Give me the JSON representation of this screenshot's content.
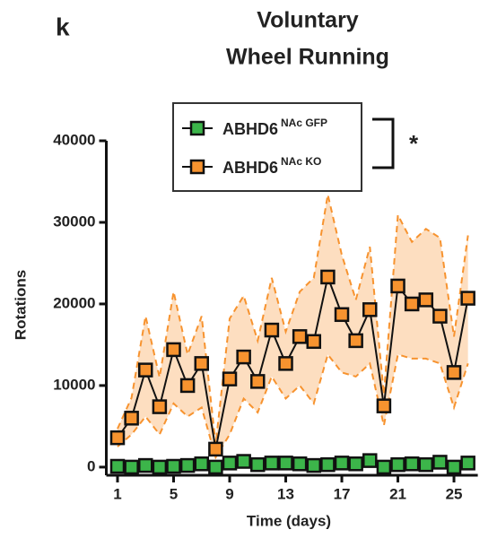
{
  "chart_data": {
    "type": "line",
    "panel_label": "k",
    "title": [
      "Voluntary",
      "Wheel Running"
    ],
    "x_label": "Time (days)",
    "y_label": "Rotations",
    "significance": "*",
    "x": [
      1,
      2,
      3,
      4,
      5,
      6,
      7,
      8,
      9,
      10,
      11,
      12,
      13,
      14,
      15,
      16,
      17,
      18,
      19,
      20,
      21,
      22,
      23,
      24,
      25,
      26
    ],
    "xlim": [
      0.2,
      26.7
    ],
    "xticks": [
      1,
      5,
      9,
      13,
      17,
      21,
      25
    ],
    "ylim": [
      -1000,
      40000
    ],
    "yticks": [
      0,
      10000,
      20000,
      30000,
      40000
    ],
    "series": [
      {
        "name": "ABHD6",
        "superscript": "NAc GFP",
        "color": "#3cb54a",
        "values": [
          100,
          0,
          200,
          0,
          100,
          200,
          400,
          0,
          500,
          700,
          300,
          500,
          500,
          400,
          200,
          300,
          500,
          400,
          800,
          0,
          300,
          400,
          300,
          600,
          0,
          500
        ]
      },
      {
        "name": "ABHD6",
        "superscript": "NAc KO",
        "color": "#f7932f",
        "values": [
          3600,
          6000,
          11900,
          7400,
          14400,
          10000,
          12700,
          2200,
          10800,
          13500,
          10500,
          16800,
          12700,
          16000,
          15400,
          23300,
          18700,
          15500,
          19300,
          7500,
          22200,
          20000,
          20500,
          18500,
          11600,
          20700
        ],
        "upper": [
          4700,
          8500,
          18500,
          11000,
          21500,
          13800,
          18500,
          2800,
          18200,
          21000,
          15500,
          23200,
          16600,
          21500,
          23200,
          33400,
          26000,
          20500,
          27000,
          8900,
          30900,
          27600,
          29200,
          28100,
          16000,
          28400
        ],
        "lower": [
          2500,
          4000,
          6200,
          4000,
          7800,
          6200,
          7300,
          1200,
          4000,
          8400,
          6700,
          11100,
          8400,
          10000,
          7800,
          13800,
          11600,
          11100,
          12700,
          5100,
          13800,
          13300,
          13300,
          12700,
          7300,
          12700
        ]
      }
    ]
  }
}
